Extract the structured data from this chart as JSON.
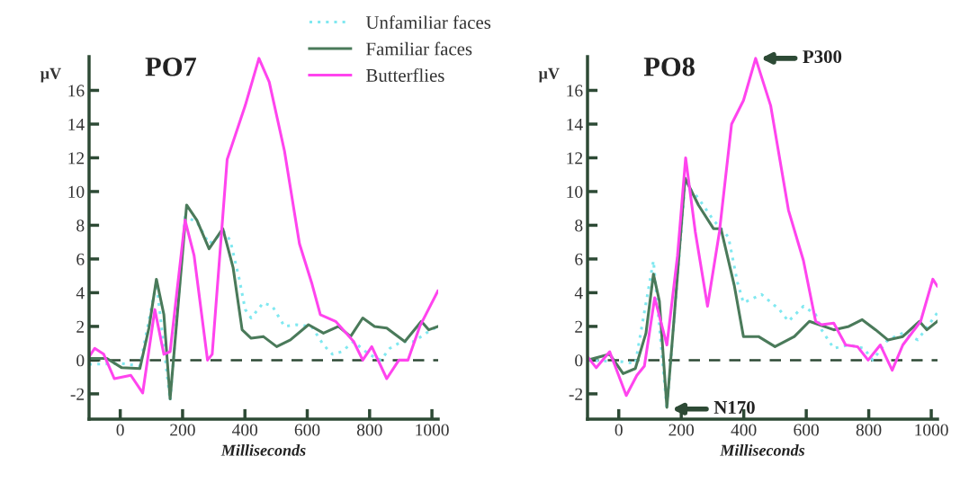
{
  "chart_data": [
    {
      "type": "line",
      "title": "PO7",
      "xlabel": "Milliseconds",
      "ylabel": "µV",
      "xlim": [
        -100,
        1020
      ],
      "ylim": [
        -3.5,
        18
      ],
      "xticks": [
        0,
        200,
        400,
        600,
        800,
        1000
      ],
      "yticks": [
        -2,
        0,
        2,
        4,
        6,
        8,
        10,
        12,
        14,
        16
      ],
      "grid": false,
      "legend": "top right",
      "marker": "none",
      "ref_lines": [
        {
          "axis": "y",
          "value": 0,
          "line_style": "dashed",
          "color": "#2d4a35"
        }
      ],
      "series": [
        {
          "name": "Unfamiliar faces",
          "color": "#80e8f0",
          "line_style": "dotted",
          "x": [
            -100,
            5,
            63,
            116,
            160,
            208,
            246,
            285,
            333,
            353,
            382,
            401,
            420,
            459,
            488,
            527,
            565,
            614,
            652,
            681,
            710,
            749,
            797,
            836,
            865,
            903,
            942,
            981,
            1019
          ],
          "values": [
            -0.25,
            -0.2,
            -0.35,
            4.6,
            -2.4,
            8.5,
            8.2,
            6.9,
            7.6,
            7.1,
            4.8,
            3.0,
            2.5,
            3.4,
            3.2,
            2.0,
            2.1,
            2.0,
            0.9,
            0.35,
            0.5,
            1.1,
            0.35,
            0,
            0.7,
            1.1,
            1.1,
            1.6,
            2.0
          ]
        },
        {
          "name": "Familiar faces",
          "color": "#4a7a5a",
          "line_style": "solid",
          "x": [
            -100,
            -43,
            5,
            63,
            92,
            116,
            140,
            160,
            179,
            213,
            246,
            285,
            329,
            362,
            391,
            420,
            459,
            502,
            546,
            604,
            652,
            700,
            739,
            778,
            816,
            855,
            913,
            966,
            990,
            1019
          ],
          "values": [
            0.1,
            0.1,
            -0.45,
            -0.5,
            1.9,
            4.8,
            2.7,
            -2.3,
            1.8,
            9.2,
            8.3,
            6.6,
            7.8,
            5.5,
            1.8,
            1.3,
            1.4,
            0.8,
            1.2,
            2.1,
            1.6,
            2.0,
            1.4,
            2.5,
            2.0,
            1.9,
            1.1,
            2.3,
            1.8,
            2.0
          ]
        },
        {
          "name": "Butterflies",
          "color": "#ff44ee",
          "line_style": "solid",
          "x": [
            -100,
            -82,
            -53,
            -19,
            34,
            72,
            111,
            140,
            160,
            208,
            237,
            280,
            295,
            343,
            401,
            445,
            478,
            527,
            575,
            614,
            642,
            691,
            749,
            778,
            807,
            855,
            894,
            923,
            961,
            1019
          ],
          "values": [
            0.2,
            0.7,
            0.35,
            -1.1,
            -0.9,
            -1.95,
            3.0,
            0.35,
            0.5,
            8.3,
            6.2,
            0,
            0.35,
            11.9,
            15.1,
            17.9,
            16.5,
            12.4,
            6.9,
            4.6,
            2.7,
            2.3,
            1.1,
            0,
            0.8,
            -1.1,
            0,
            0,
            2.0,
            4.1
          ]
        }
      ]
    },
    {
      "type": "line",
      "title": "PO8",
      "xlabel": "Milliseconds",
      "ylabel": "µV",
      "xlim": [
        -100,
        1020
      ],
      "ylim": [
        -3.5,
        18
      ],
      "xticks": [
        0,
        200,
        400,
        600,
        800,
        1000
      ],
      "yticks": [
        -2,
        0,
        2,
        4,
        6,
        8,
        10,
        12,
        14,
        16
      ],
      "grid": false,
      "marker": "none",
      "ref_lines": [
        {
          "axis": "y",
          "value": 0,
          "line_style": "dashed",
          "color": "#2d4a35"
        }
      ],
      "annotations": [
        {
          "text": "P300",
          "x": 438,
          "y": 17.9
        },
        {
          "text": "N170",
          "x": 154,
          "y": -2.9
        }
      ],
      "series": [
        {
          "color": "#80e8f0",
          "line_style": "dotted",
          "x": [
            -100,
            14,
            53,
            111,
            154,
            212,
            255,
            303,
            351,
            380,
            399,
            457,
            514,
            543,
            591,
            630,
            649,
            688,
            736,
            784,
            813,
            861,
            909,
            957,
            1019
          ],
          "values": [
            0,
            -0.1,
            -0.2,
            5.9,
            -2.9,
            10.5,
            9.6,
            8.3,
            7.3,
            4.6,
            3.4,
            3.9,
            3.0,
            2.3,
            3.2,
            2.7,
            1.8,
            0.7,
            0.9,
            0.7,
            0,
            1.2,
            1.6,
            1.2,
            2.8
          ]
        },
        {
          "color": "#4a7a5a",
          "line_style": "solid",
          "x": [
            -100,
            -29,
            14,
            53,
            87,
            111,
            130,
            154,
            178,
            212,
            255,
            303,
            327,
            370,
            399,
            447,
            500,
            562,
            610,
            688,
            736,
            779,
            822,
            861,
            909,
            962,
            986,
            1019
          ],
          "values": [
            0,
            0.35,
            -0.8,
            -0.5,
            1.6,
            5.1,
            3.5,
            -2.8,
            2.7,
            10.8,
            9.2,
            7.8,
            7.8,
            4.4,
            1.4,
            1.4,
            0.8,
            1.4,
            2.3,
            1.8,
            2.0,
            2.4,
            1.8,
            1.2,
            1.4,
            2.3,
            1.8,
            2.3
          ]
        },
        {
          "color": "#ff44ee",
          "line_style": "solid",
          "x": [
            -100,
            -72,
            -29,
            24,
            58,
            82,
            115,
            154,
            188,
            214,
            245,
            284,
            322,
            361,
            399,
            438,
            486,
            543,
            591,
            630,
            649,
            688,
            726,
            764,
            798,
            837,
            875,
            909,
            966,
            1005,
            1019
          ],
          "values": [
            0.2,
            -0.45,
            0.5,
            -2.1,
            -0.9,
            -0.35,
            3.7,
            0.9,
            6.2,
            12.0,
            7.6,
            3.2,
            7.6,
            14.0,
            15.4,
            17.9,
            15.1,
            8.9,
            5.9,
            2.3,
            2.1,
            2.2,
            0.9,
            0.8,
            0,
            0.9,
            -0.6,
            0.9,
            2.3,
            4.8,
            4.4
          ]
        }
      ]
    }
  ]
}
